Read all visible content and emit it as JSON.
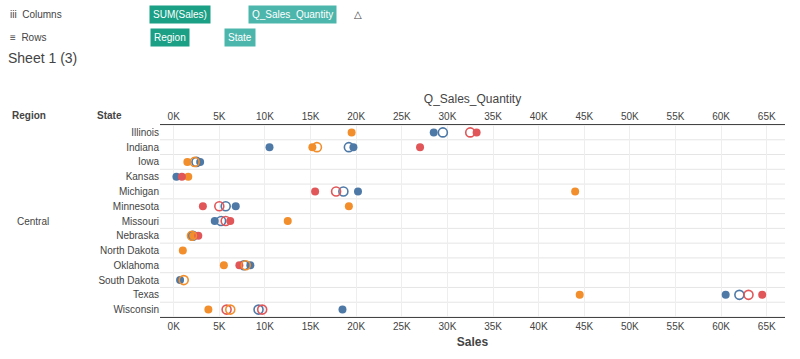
{
  "chart_data": {
    "type": "scatter",
    "title": "Sheet 1 (3)",
    "xlabel": "Sales",
    "x2label": "Q_Sales_Quantity",
    "categories": [
      "Illinois",
      "Indiana",
      "Iowa",
      "Kansas",
      "Michigan",
      "Minnesota",
      "Missouri",
      "Nebraska",
      "North Dakota",
      "Oklahoma",
      "South Dakota",
      "Texas",
      "Wisconsin"
    ],
    "annotations": [
      {
        "text": "iii  Columns"
      },
      {
        "text": "SUM(Sales)",
        "color": "#1BA086"
      },
      {
        "text": "Q_Sales_Quantity",
        "color": "#4DB6AC"
      },
      {
        "text": "△"
      },
      {
        "text": "≡  Rows"
      },
      {
        "text": "Region",
        "color": "#1BA086"
      },
      {
        "text": "State",
        "color": "#4DB6AC"
      },
      {
        "text": "Region"
      },
      {
        "text": "State"
      },
      {
        "text": "Central"
      }
    ],
    "xlim": [
      -1500,
      67000
    ],
    "xticks": [
      {
        "value": 0,
        "label": "0K"
      },
      {
        "value": 5000,
        "label": "5K"
      },
      {
        "value": 10000,
        "label": "10K"
      },
      {
        "value": 15000,
        "label": "15K"
      },
      {
        "value": 20000,
        "label": "20K"
      },
      {
        "value": 25000,
        "label": "25K"
      },
      {
        "value": 30000,
        "label": "30K"
      },
      {
        "value": 35000,
        "label": "35K"
      },
      {
        "value": 40000,
        "label": "40K"
      },
      {
        "value": 45000,
        "label": "45K"
      },
      {
        "value": 50000,
        "label": "50K"
      },
      {
        "value": 55000,
        "label": "55K"
      },
      {
        "value": 60000,
        "label": "60K"
      },
      {
        "value": 65000,
        "label": "65K"
      }
    ],
    "grid": true,
    "series": [
      {
        "color": "#F28E2B",
        "marker": "filled",
        "x": [
          19500,
          15200,
          1500,
          1600,
          44000,
          19200,
          12500,
          2000,
          1000,
          5500,
          44500,
          3800
        ],
        "y": [
          "Illinois",
          "Indiana",
          "Iowa",
          "Kansas",
          "Michigan",
          "Minnesota",
          "Missouri",
          "Nebraska",
          "North Dakota",
          "Oklahoma",
          "Texas",
          "Wisconsin"
        ]
      },
      {
        "color": "#4E79A7",
        "marker": "filled",
        "x": [
          28500,
          10500,
          19700,
          2900,
          300,
          20200,
          6800,
          4500,
          8400,
          700,
          60500,
          18500
        ],
        "y": [
          "Illinois",
          "Indiana",
          "Indiana",
          "Iowa",
          "Kansas",
          "Michigan",
          "Minnesota",
          "Missouri",
          "Oklahoma",
          "South Dakota",
          "Texas",
          "Wisconsin"
        ]
      },
      {
        "color": "#4E79A7",
        "marker": "open",
        "x": [
          29500,
          19200,
          2500,
          18600,
          5700,
          5200,
          2100,
          7700,
          62000,
          9300
        ],
        "y": [
          "Illinois",
          "Indiana",
          "Iowa",
          "Michigan",
          "Minnesota",
          "Missouri",
          "Nebraska",
          "Oklahoma",
          "Texas",
          "Wisconsin"
        ]
      },
      {
        "color": "#E15759",
        "marker": "open",
        "x": [
          32500,
          17800,
          5000,
          5700,
          63000,
          5800,
          9700
        ],
        "y": [
          "Illinois",
          "Michigan",
          "Minnesota",
          "Missouri",
          "Texas",
          "Wisconsin",
          "Wisconsin"
        ]
      },
      {
        "color": "#E15759",
        "marker": "filled",
        "x": [
          33200,
          27000,
          900,
          15500,
          3200,
          6200,
          2700,
          7200,
          64500
        ],
        "y": [
          "Illinois",
          "Indiana",
          "Kansas",
          "Michigan",
          "Minnesota",
          "Missouri",
          "Nebraska",
          "Oklahoma",
          "Texas"
        ]
      },
      {
        "color": "#F28E2B",
        "marker": "open",
        "x": [
          15700,
          2300,
          2000,
          7900,
          1100,
          6200
        ],
        "y": [
          "Indiana",
          "Iowa",
          "Nebraska",
          "Oklahoma",
          "South Dakota",
          "Wisconsin"
        ]
      }
    ]
  }
}
